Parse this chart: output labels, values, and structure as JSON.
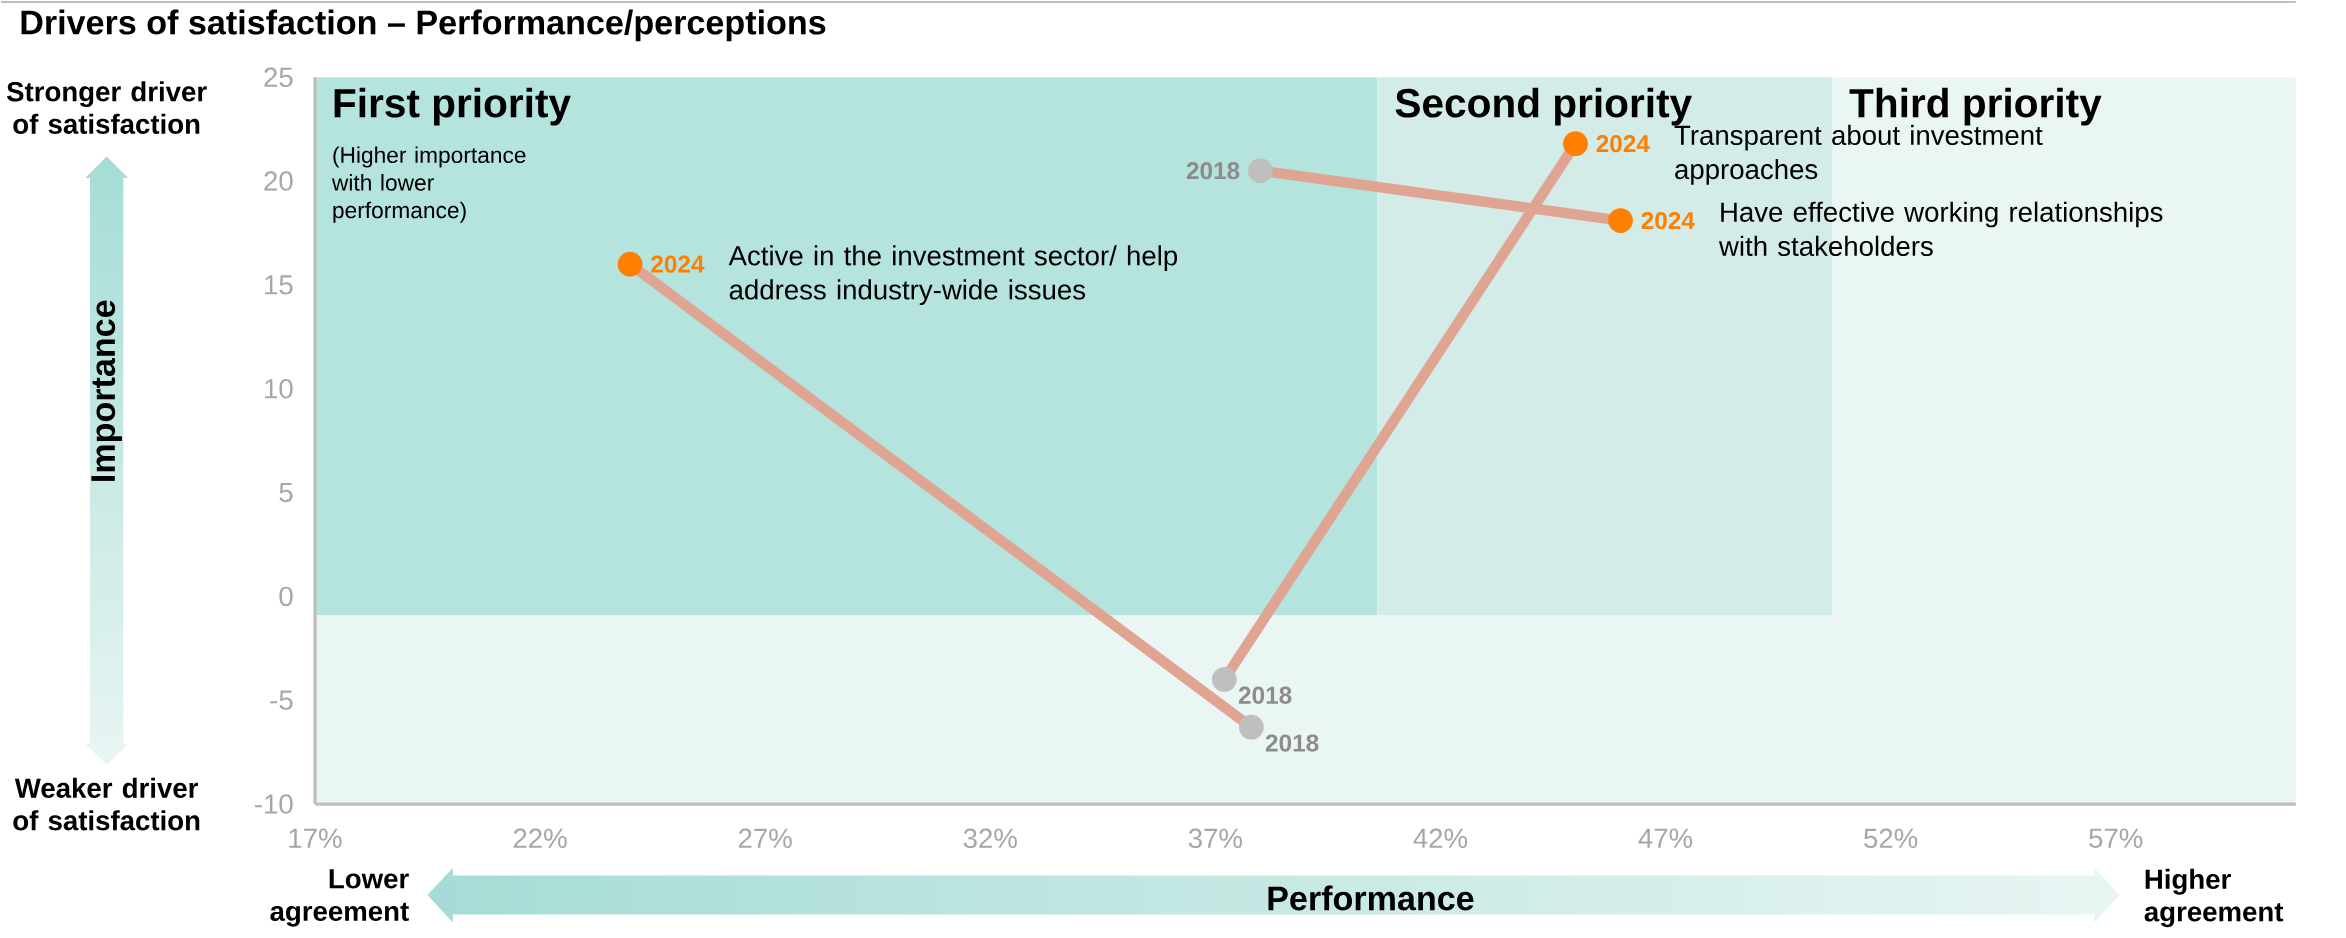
{
  "chart_data": {
    "type": "line",
    "title": "Drivers of satisfaction – Performance/perceptions",
    "xlabel": "Performance",
    "ylabel": "Importance",
    "xlim": [
      17,
      61
    ],
    "ylim": [
      -10,
      25
    ],
    "xticks": [
      {
        "value": 17,
        "label": "17%"
      },
      {
        "value": 22,
        "label": "22%"
      },
      {
        "value": 27,
        "label": "27%"
      },
      {
        "value": 32,
        "label": "32%"
      },
      {
        "value": 37,
        "label": "37%"
      },
      {
        "value": 42,
        "label": "42%"
      },
      {
        "value": 47,
        "label": "47%"
      },
      {
        "value": 52,
        "label": "52%"
      },
      {
        "value": 57,
        "label": "57%"
      }
    ],
    "yticks": [
      -10,
      -5,
      0,
      5,
      10,
      15,
      20,
      25
    ],
    "marker": "circle",
    "line_style": "solid",
    "series": [
      {
        "name": "Active in the investment sector/ help address industry-wide issues",
        "color": "#dfa592",
        "colors": [
          "#bfbfbf",
          "#ff7f00"
        ],
        "x": [
          37.8,
          24.0
        ],
        "values": [
          -6.3,
          16.0
        ]
      },
      {
        "name": "Transparent about investment approaches",
        "color": "#dfa592",
        "colors": [
          "#bfbfbf",
          "#ff7f00"
        ],
        "x": [
          37.2,
          45.0
        ],
        "values": [
          -4.0,
          21.8
        ]
      },
      {
        "name": "Have effective working relationships with stakeholders",
        "color": "#dfa592",
        "colors": [
          "#bfbfbf",
          "#ff7f00"
        ],
        "x": [
          38.0,
          46.0
        ],
        "values": [
          20.5,
          18.1
        ]
      }
    ],
    "bands": [
      {
        "axis": "x",
        "from": 17,
        "to": 40.6,
        "label": "First priority",
        "color": "#b5e3dd"
      },
      {
        "axis": "x",
        "from": 40.6,
        "to": 50.7,
        "label": "Second priority",
        "color": "#d3ece8"
      },
      {
        "axis": "x",
        "from": 50.7,
        "to": 61,
        "label": "Third priority",
        "color": "#eaf6f4"
      },
      {
        "axis": "y",
        "from": -10,
        "to": -0.9,
        "label": null,
        "color": "#eaf6f4"
      }
    ],
    "annotations": [
      "(Higher importance with lower performance)",
      "Stronger driver of satisfaction",
      "Weaker driver of satisfaction",
      "Lower agreement",
      "Higher agreement",
      {
        "text": "2018",
        "x": 37.8,
        "y": -6.3
      },
      {
        "text": "2024",
        "x": 24.0,
        "y": 16.0
      },
      {
        "text": "2018",
        "x": 37.2,
        "y": -4.0
      },
      {
        "text": "2024",
        "x": 45.0,
        "y": 21.8
      },
      {
        "text": "2018",
        "x": 38.0,
        "y": 20.5
      },
      {
        "text": "2024",
        "x": 46.0,
        "y": 18.1
      }
    ]
  }
}
